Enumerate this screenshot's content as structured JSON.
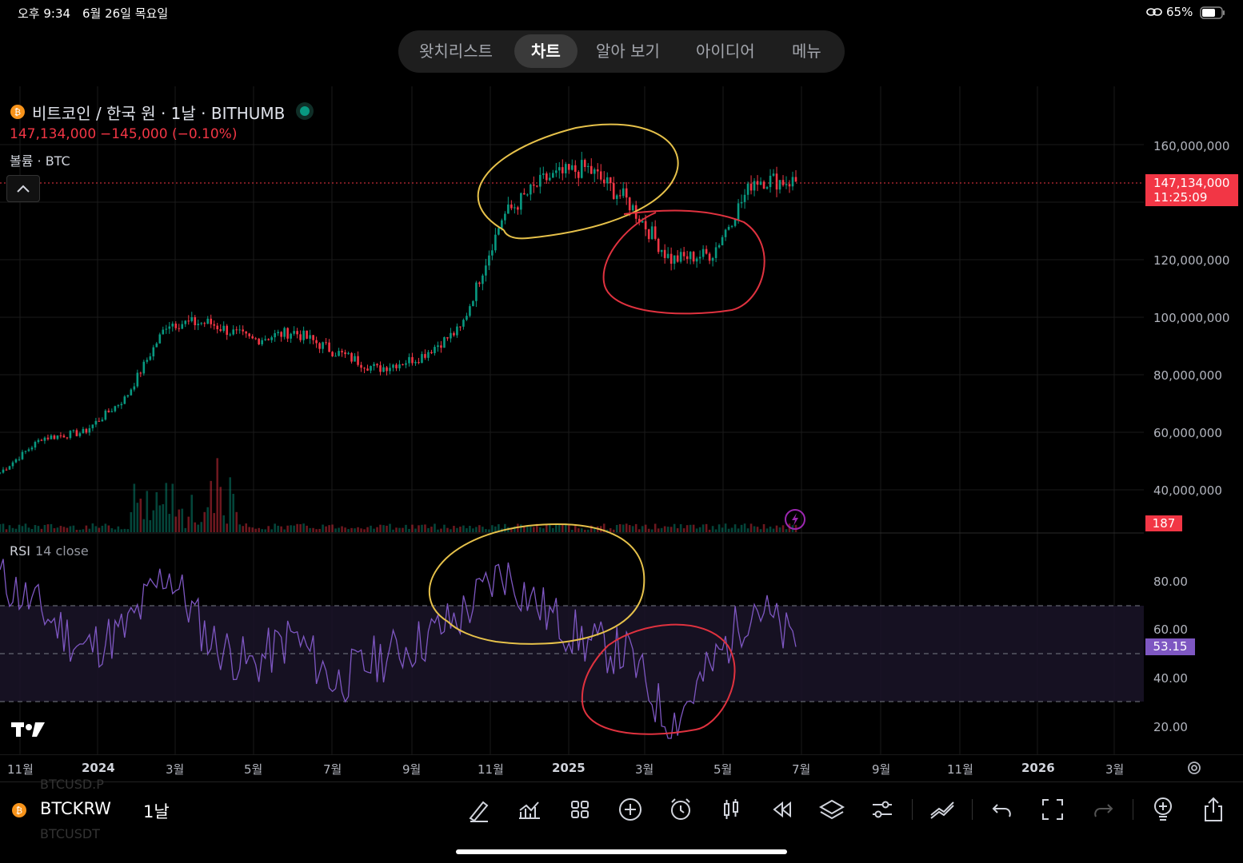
{
  "status_bar": {
    "time": "오후 9:34",
    "date": "6월 26일 목요일",
    "battery": "65%",
    "icon": "link-icon"
  },
  "nav_tabs": [
    {
      "label": "왓치리스트",
      "active": false
    },
    {
      "label": "차트",
      "active": true
    },
    {
      "label": "알아 보기",
      "active": false
    },
    {
      "label": "아이디어",
      "active": false
    },
    {
      "label": "메뉴",
      "active": false
    }
  ],
  "symbol": {
    "title": "비트코인 / 한국 원 · 1날 · BITHUMB",
    "price": "147,134,000",
    "change": "−145,000 (−0.10%)",
    "volume_label": "볼륨 · BTC",
    "status_color": "#089981"
  },
  "price_tag": {
    "price": "147,134,000",
    "countdown": "11:25:09",
    "color": "#f23645"
  },
  "volume_tag": {
    "value": "187",
    "color": "#f23645"
  },
  "rsi": {
    "label": "RSI",
    "params": "14 close",
    "current": "53.15",
    "color": "#7e57c2"
  },
  "colors": {
    "up": "#089981",
    "down": "#f23645",
    "rsi_line": "#7e57c2",
    "ellipse_yellow": "#e6c14a",
    "ellipse_red": "#e0323f"
  },
  "chart_data": [
    {
      "type": "candlestick",
      "title": "비트코인 / 한국 원 · 1날 · BITHUMB",
      "y_ticks": [
        "160,000,000",
        "120,000,000",
        "100,000,000",
        "80,000,000",
        "60,000,000",
        "40,000,000"
      ],
      "x_ticks": [
        "11월",
        "2024",
        "3월",
        "5월",
        "7월",
        "9월",
        "11월",
        "2025",
        "3월",
        "5월",
        "7월",
        "9월",
        "11월",
        "2026",
        "3월"
      ],
      "x": [
        "2023-11",
        "2023-12",
        "2024-01",
        "2024-02",
        "2024-03",
        "2024-04",
        "2024-05",
        "2024-06",
        "2024-07",
        "2024-08",
        "2024-09",
        "2024-10",
        "2024-11",
        "2024-12",
        "2025-01",
        "2025-02",
        "2025-03",
        "2025-04",
        "2025-05",
        "2025-06"
      ],
      "close": [
        46000000,
        58000000,
        60000000,
        72000000,
        98000000,
        98000000,
        92000000,
        95000000,
        88000000,
        82000000,
        86000000,
        96000000,
        135000000,
        148000000,
        152000000,
        140000000,
        120000000,
        122000000,
        148000000,
        147134000
      ],
      "ylim": [
        30000000,
        165000000
      ]
    },
    {
      "type": "line",
      "title": "RSI 14 close",
      "y_ticks": [
        "80.00",
        "60.00",
        "40.00",
        "20.00"
      ],
      "x": [
        "2023-11",
        "2023-12",
        "2024-01",
        "2024-02",
        "2024-03",
        "2024-04",
        "2024-05",
        "2024-06",
        "2024-07",
        "2024-08",
        "2024-09",
        "2024-10",
        "2024-11",
        "2024-12",
        "2025-01",
        "2025-02",
        "2025-03",
        "2025-04",
        "2025-05",
        "2025-06"
      ],
      "values": [
        82,
        68,
        52,
        60,
        85,
        56,
        45,
        58,
        38,
        48,
        55,
        66,
        85,
        68,
        55,
        50,
        20,
        45,
        72,
        53.15
      ],
      "bands": [
        70,
        50,
        30
      ],
      "ylim": [
        15,
        95
      ]
    }
  ],
  "bottom_bar": {
    "symbol": "BTCKRW",
    "interval": "1날",
    "ghost_top": "BTCUSD.P",
    "ghost_bottom": "BTCUSDT",
    "tools": [
      "drawing-pen-icon",
      "indicators-icon",
      "layout-grid-icon",
      "add-circle-icon",
      "alert-clock-icon",
      "candle-style-icon",
      "replay-icon",
      "layers-icon",
      "settings-sliders-icon",
      "trend-lines-icon",
      "undo-icon",
      "fullscreen-icon",
      "redo-icon",
      "idea-bulb-icon",
      "share-icon"
    ]
  }
}
